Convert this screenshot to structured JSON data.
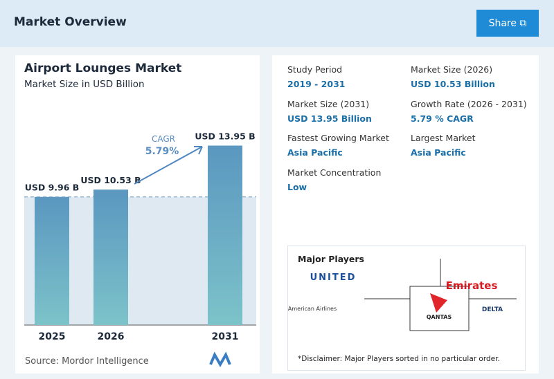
{
  "header": {
    "title": "Market Overview",
    "button": "Share"
  },
  "chart_data": {
    "type": "bar",
    "title": "Airport Lounges Market",
    "subtitle": "Market Size in USD Billion",
    "categories": [
      "2025",
      "2026",
      "2031"
    ],
    "values": [
      9.96,
      10.53,
      13.95
    ],
    "value_labels": [
      "USD 9.96 B",
      "USD 10.53 B",
      "USD 13.95 B"
    ],
    "color": "#5b97c0",
    "annotation": {
      "label": "CAGR",
      "value": "5.79%"
    },
    "source": "Source: Mordor Intelligence"
  },
  "stats": [
    {
      "label": "Study Period",
      "value": "2019 - 2031"
    },
    {
      "label": "Market Size (2026)",
      "value": "USD 10.53 Billion"
    },
    {
      "label": "Market Size (2031)",
      "value": "USD 13.95 Billion"
    },
    {
      "label": "Growth Rate (2026 - 2031)",
      "value": "5.79 % CAGR"
    },
    {
      "label": "Fastest Growing Market",
      "value": "Asia Pacific"
    },
    {
      "label": "Largest Market",
      "value": "Asia Pacific"
    },
    {
      "label": "Market Concentration",
      "value": "Low"
    }
  ],
  "players": {
    "title": "Major Players",
    "logos": [
      "UNITED",
      "Emirates",
      "American Airlines",
      "QANTAS",
      "DELTA"
    ],
    "disclaimer": "*Disclaimer: Major Players sorted in no particular order."
  }
}
